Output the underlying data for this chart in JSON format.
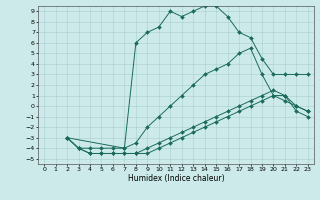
{
  "xlabel": "Humidex (Indice chaleur)",
  "xlim": [
    -0.5,
    23.5
  ],
  "ylim": [
    -5.5,
    9.5
  ],
  "yticks": [
    -5,
    -4,
    -3,
    -2,
    -1,
    0,
    1,
    2,
    3,
    4,
    5,
    6,
    7,
    8,
    9
  ],
  "xticks": [
    0,
    1,
    2,
    3,
    4,
    5,
    6,
    7,
    8,
    9,
    10,
    11,
    12,
    13,
    14,
    15,
    16,
    17,
    18,
    19,
    20,
    21,
    22,
    23
  ],
  "bg_color": "#cdeaea",
  "line_color": "#1a6b5a",
  "curve1_x": [
    2,
    3,
    4,
    5,
    6,
    7,
    8,
    9,
    10,
    11,
    12,
    13,
    14,
    15,
    16,
    17,
    18,
    19,
    20,
    21,
    22,
    23
  ],
  "curve1_y": [
    -3,
    -4,
    -4,
    -4,
    -4,
    -4,
    6,
    7,
    7.5,
    9,
    8.5,
    9,
    9.5,
    9.5,
    8.5,
    7,
    6.5,
    4.5,
    3,
    3,
    3,
    3
  ],
  "curve2_x": [
    2,
    7,
    8,
    9,
    10,
    11,
    12,
    13,
    14,
    15,
    16,
    17,
    18,
    19,
    20,
    21,
    22,
    23
  ],
  "curve2_y": [
    -3,
    -4,
    -3.5,
    -2,
    -1,
    0,
    1,
    2,
    3,
    3.5,
    4,
    5,
    5.5,
    3,
    1,
    0.5,
    0,
    -0.5
  ],
  "curve3_x": [
    2,
    3,
    4,
    5,
    6,
    7,
    8,
    9,
    10,
    11,
    12,
    13,
    14,
    15,
    16,
    17,
    18,
    19,
    20,
    21,
    22,
    23
  ],
  "curve3_y": [
    -3,
    -4,
    -4.5,
    -4.5,
    -4.5,
    -4.5,
    -4.5,
    -4,
    -3.5,
    -3,
    -2.5,
    -2,
    -1.5,
    -1,
    -0.5,
    0,
    0.5,
    1,
    1.5,
    1,
    0,
    -0.5
  ],
  "curve4_x": [
    2,
    3,
    4,
    5,
    6,
    7,
    8,
    9,
    10,
    11,
    12,
    13,
    14,
    15,
    16,
    17,
    18,
    19,
    20,
    21,
    22,
    23
  ],
  "curve4_y": [
    -3,
    -4,
    -4.5,
    -4.5,
    -4.5,
    -4.5,
    -4.5,
    -4.5,
    -4,
    -3.5,
    -3,
    -2.5,
    -2,
    -1.5,
    -1,
    -0.5,
    0,
    0.5,
    1,
    1,
    -0.5,
    -1
  ]
}
